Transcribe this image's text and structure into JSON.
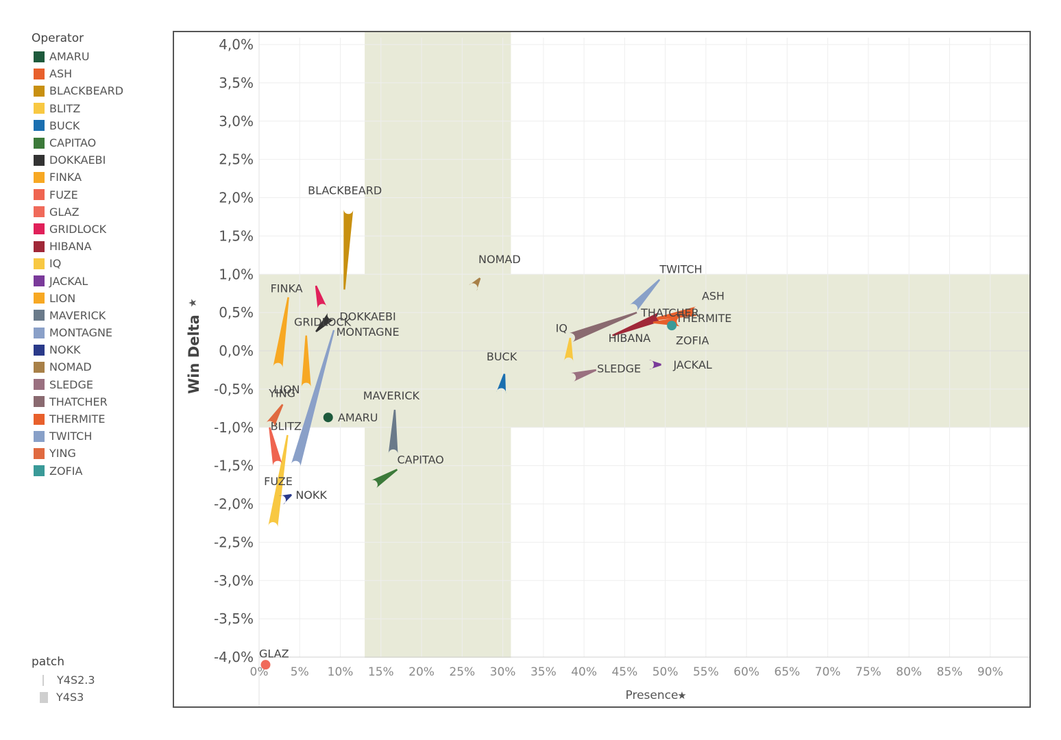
{
  "legend": {
    "title": "Operator",
    "items": [
      {
        "label": "AMARU",
        "color": "#1e5a3c"
      },
      {
        "label": "ASH",
        "color": "#e8602c"
      },
      {
        "label": "BLACKBEARD",
        "color": "#c89010"
      },
      {
        "label": "BLITZ",
        "color": "#f8c842"
      },
      {
        "label": "BUCK",
        "color": "#1a6fb0"
      },
      {
        "label": "CAPITAO",
        "color": "#3c7a3a"
      },
      {
        "label": "DOKKAEBI",
        "color": "#333333"
      },
      {
        "label": "FINKA",
        "color": "#f7a823"
      },
      {
        "label": "FUZE",
        "color": "#ef6450"
      },
      {
        "label": "GLAZ",
        "color": "#f06a5a"
      },
      {
        "label": "GRIDLOCK",
        "color": "#e0205a"
      },
      {
        "label": "HIBANA",
        "color": "#a02838"
      },
      {
        "label": "IQ",
        "color": "#f8c842"
      },
      {
        "label": "JACKAL",
        "color": "#7a3a9a"
      },
      {
        "label": "LION",
        "color": "#f7a823"
      },
      {
        "label": "MAVERICK",
        "color": "#6a7a8a"
      },
      {
        "label": "MONTAGNE",
        "color": "#8aa0c8"
      },
      {
        "label": "NOKK",
        "color": "#2a3a8a"
      },
      {
        "label": "NOMAD",
        "color": "#a88048"
      },
      {
        "label": "SLEDGE",
        "color": "#9a7080"
      },
      {
        "label": "THATCHER",
        "color": "#8a6a70"
      },
      {
        "label": "THERMITE",
        "color": "#e8602c"
      },
      {
        "label": "TWITCH",
        "color": "#88a0c8"
      },
      {
        "label": "YING",
        "color": "#e06a40"
      },
      {
        "label": "ZOFIA",
        "color": "#3a9a98"
      }
    ]
  },
  "patch_legend": {
    "title": "patch",
    "items": [
      {
        "label": "Y4S2.3"
      },
      {
        "label": "Y4S3"
      }
    ]
  },
  "chart_data": {
    "type": "scatter",
    "xlabel": "Presence",
    "ylabel": "Win Delta",
    "xlim": [
      0,
      95
    ],
    "ylim": [
      -4.0,
      4.0
    ],
    "x_ticks": [
      "0%",
      "5%",
      "10%",
      "15%",
      "20%",
      "25%",
      "30%",
      "35%",
      "40%",
      "45%",
      "50%",
      "55%",
      "60%",
      "65%",
      "70%",
      "75%",
      "80%",
      "85%",
      "90%"
    ],
    "y_ticks": [
      "4,0%",
      "3,5%",
      "3,0%",
      "2,5%",
      "2,0%",
      "1,5%",
      "1,0%",
      "0,5%",
      "0,0%",
      "-0,5%",
      "-1,0%",
      "-1,5%",
      "-2,0%",
      "-2,5%",
      "-3,0%",
      "-3,5%",
      "-4,0%"
    ],
    "bands": [
      {
        "axis": "x",
        "from": 13,
        "to": 31,
        "color": "#e8ead8"
      },
      {
        "axis": "y",
        "from": -1.0,
        "to": 1.0,
        "color": "#e8ead8"
      }
    ],
    "grid": true,
    "zero_line": true,
    "legend_position": "left",
    "operators": [
      {
        "name": "AMARU",
        "color": "#1e5a3c",
        "from": [
          8.5,
          -0.87
        ],
        "to": [
          8.5,
          -0.87
        ],
        "label": [
          9.7,
          -0.87
        ]
      },
      {
        "name": "ASH",
        "color": "#e8602c",
        "from": [
          48,
          0.4
        ],
        "to": [
          54,
          0.52
        ],
        "label": [
          54.5,
          0.72
        ]
      },
      {
        "name": "BLACKBEARD",
        "color": "#c89010",
        "from": [
          10.5,
          0.8
        ],
        "to": [
          11,
          1.85
        ],
        "label": [
          6,
          2.1
        ]
      },
      {
        "name": "BLITZ",
        "color": "#f8c842",
        "from": [
          3.5,
          -1.1
        ],
        "to": [
          1.7,
          -2.3
        ],
        "label": [
          1.4,
          -0.98
        ]
      },
      {
        "name": "BUCK",
        "color": "#1a6fb0",
        "from": [
          30.2,
          -0.3
        ],
        "to": [
          29.8,
          -0.55
        ],
        "label": [
          28,
          -0.07
        ]
      },
      {
        "name": "CAPITAO",
        "color": "#3c7a3a",
        "from": [
          17,
          -1.55
        ],
        "to": [
          14,
          -1.75
        ],
        "label": [
          17,
          -1.42
        ]
      },
      {
        "name": "DOKKAEBI",
        "color": "#333333",
        "from": [
          7,
          0.25
        ],
        "to": [
          9,
          0.47
        ],
        "label": [
          9.9,
          0.45
        ]
      },
      {
        "name": "FINKA",
        "color": "#f7a823",
        "from": [
          3.6,
          0.7
        ],
        "to": [
          2.3,
          -0.22
        ],
        "label": [
          1.4,
          0.82
        ]
      },
      {
        "name": "FUZE",
        "color": "#ef6450",
        "from": [
          1.3,
          -1.0
        ],
        "to": [
          2.3,
          -1.5
        ],
        "label": [
          0.6,
          -1.7
        ]
      },
      {
        "name": "GLAZ",
        "color": "#f06a5a",
        "from": [
          0.8,
          -4.1
        ],
        "to": [
          0.8,
          -4.1
        ],
        "label": [
          0,
          -3.95
        ]
      },
      {
        "name": "GRIDLOCK",
        "color": "#e0205a",
        "from": [
          7,
          0.85
        ],
        "to": [
          7.8,
          0.55
        ],
        "label": [
          4.3,
          0.38
        ]
      },
      {
        "name": "HIBANA",
        "color": "#a02838",
        "from": [
          43.5,
          0.2
        ],
        "to": [
          49.5,
          0.45
        ],
        "label": [
          43,
          0.17
        ]
      },
      {
        "name": "IQ",
        "color": "#f8c842",
        "from": [
          38.3,
          0.17
        ],
        "to": [
          38.1,
          -0.15
        ],
        "label": [
          36.5,
          0.3
        ]
      },
      {
        "name": "JACKAL",
        "color": "#7a3a9a",
        "from": [
          49.5,
          -0.18
        ],
        "to": [
          48,
          -0.18
        ],
        "label": [
          51,
          -0.18
        ]
      },
      {
        "name": "LION",
        "color": "#f7a823",
        "from": [
          5.8,
          0.2
        ],
        "to": [
          5.8,
          -0.48
        ],
        "label": [
          1.8,
          -0.5
        ]
      },
      {
        "name": "MAVERICK",
        "color": "#6a7a8a",
        "from": [
          16.7,
          -0.77
        ],
        "to": [
          16.5,
          -1.35
        ],
        "label": [
          12.8,
          -0.58
        ]
      },
      {
        "name": "MONTAGNE",
        "color": "#8aa0c8",
        "from": [
          9.2,
          0.27
        ],
        "to": [
          4.5,
          -1.5
        ],
        "label": [
          9.5,
          0.25
        ]
      },
      {
        "name": "NOKK",
        "color": "#2a3a8a",
        "from": [
          4,
          -1.88
        ],
        "to": [
          2.7,
          -1.95
        ],
        "label": [
          4.5,
          -1.88
        ]
      },
      {
        "name": "NOMAD",
        "color": "#a88048",
        "from": [
          27.2,
          0.95
        ],
        "to": [
          26.3,
          0.82
        ],
        "label": [
          27,
          1.2
        ]
      },
      {
        "name": "SLEDGE",
        "color": "#9a7080",
        "from": [
          41.5,
          -0.25
        ],
        "to": [
          38.4,
          -0.35
        ],
        "label": [
          41.6,
          -0.23
        ]
      },
      {
        "name": "THATCHER",
        "color": "#8a6a70",
        "from": [
          46.5,
          0.5
        ],
        "to": [
          38.3,
          0.17
        ],
        "label": [
          47,
          0.5
        ]
      },
      {
        "name": "THERMITE",
        "color": "#e8602c",
        "from": [
          48.5,
          0.37
        ],
        "to": [
          52,
          0.38
        ],
        "label": [
          51.3,
          0.43
        ]
      },
      {
        "name": "TWITCH",
        "color": "#88a0c8",
        "from": [
          49.3,
          0.93
        ],
        "to": [
          46,
          0.55
        ],
        "label": [
          49.3,
          1.07
        ]
      },
      {
        "name": "YING",
        "color": "#e06a40",
        "from": [
          2.9,
          -0.7
        ],
        "to": [
          1.3,
          -0.98
        ],
        "label": [
          1.2,
          -0.55
        ]
      },
      {
        "name": "ZOFIA",
        "color": "#3a9a98",
        "from": [
          50.8,
          0.33
        ],
        "to": [
          50.8,
          0.33
        ],
        "label": [
          51.3,
          0.14
        ]
      }
    ]
  }
}
